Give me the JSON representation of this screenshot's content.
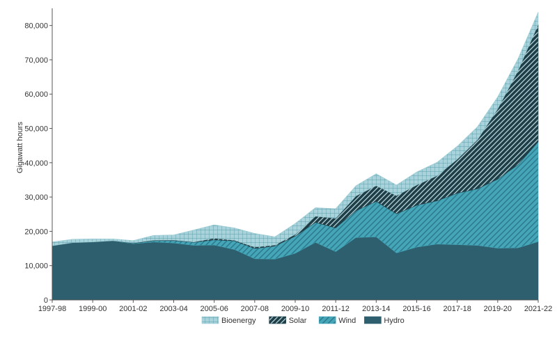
{
  "chart_data": {
    "type": "area",
    "stacked": true,
    "ylabel": "Gigawatt hours",
    "xlabel": "",
    "ylim": [
      0,
      85000
    ],
    "yticks": [
      0,
      10000,
      20000,
      30000,
      40000,
      50000,
      60000,
      70000,
      80000
    ],
    "ytick_labels": [
      "0",
      "10,000",
      "20,000",
      "30,000",
      "40,000",
      "50,000",
      "60,000",
      "70,000",
      "80,000"
    ],
    "categories": [
      "1997-98",
      "1998-99",
      "1999-00",
      "2000-01",
      "2001-02",
      "2002-03",
      "2003-04",
      "2004-05",
      "2005-06",
      "2006-07",
      "2007-08",
      "2008-09",
      "2009-10",
      "2010-11",
      "2011-12",
      "2012-13",
      "2013-14",
      "2014-15",
      "2015-16",
      "2016-17",
      "2017-18",
      "2018-19",
      "2019-20",
      "2020-21",
      "2021-22"
    ],
    "xtick_labels": [
      "1997-98",
      "1999-00",
      "2001-02",
      "2003-04",
      "2005-06",
      "2007-08",
      "2009-10",
      "2011-12",
      "2013-14",
      "2015-16",
      "2017-18",
      "2019-20",
      "2021-22"
    ],
    "legend_position": "bottom",
    "legend_order": [
      "Bioenergy",
      "Solar",
      "Wind",
      "Hydro"
    ],
    "series": [
      {
        "name": "Hydro",
        "color": "#2e5f6e",
        "pattern": "solid",
        "values": [
          15800,
          16700,
          16900,
          17200,
          16400,
          16900,
          16600,
          15900,
          16000,
          14700,
          12000,
          11900,
          13600,
          16800,
          14100,
          18200,
          18400,
          13700,
          15400,
          16300,
          16100,
          15900,
          15100,
          15200,
          17000
        ]
      },
      {
        "name": "Wind",
        "color": "#44a6b8",
        "pattern": "diagonal",
        "values": [
          0,
          0,
          10,
          30,
          100,
          350,
          700,
          900,
          1500,
          2500,
          3000,
          3800,
          5000,
          5800,
          6900,
          7800,
          10300,
          11400,
          12200,
          12600,
          15000,
          16500,
          20100,
          24200,
          29100
        ]
      },
      {
        "name": "Solar",
        "color": "#1e3e48",
        "pattern": "diagonal-dense",
        "values": [
          0,
          0,
          0,
          50,
          100,
          150,
          150,
          100,
          500,
          200,
          400,
          300,
          500,
          1800,
          2800,
          4300,
          4600,
          5300,
          5900,
          7300,
          9900,
          14300,
          20500,
          27400,
          34200
        ]
      },
      {
        "name": "Bioenergy",
        "color": "#9ccbd3",
        "pattern": "grid",
        "values": [
          1100,
          1000,
          900,
          500,
          700,
          1400,
          1500,
          3500,
          3900,
          3600,
          4000,
          2400,
          3200,
          2500,
          2800,
          3000,
          3500,
          3100,
          3800,
          3900,
          3800,
          3800,
          3500,
          3500,
          3600
        ]
      }
    ]
  }
}
